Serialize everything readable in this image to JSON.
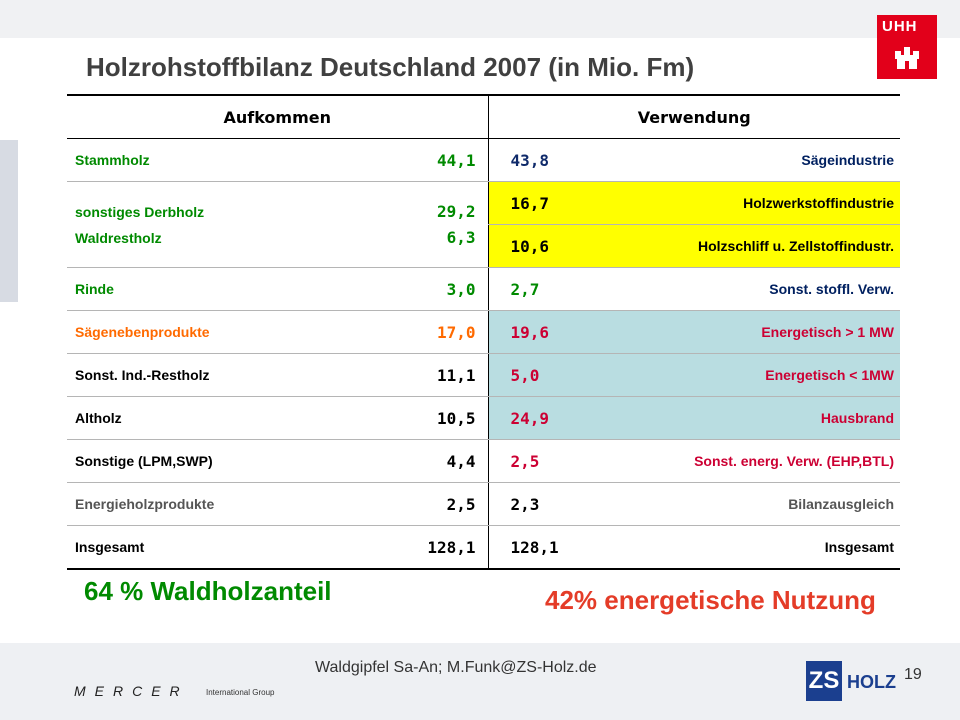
{
  "title": "Holzrohstoffbilanz Deutschland 2007 (in Mio. Fm)",
  "logo_text": "UHH",
  "headers": {
    "aufkommen": "Aufkommen",
    "verwendung": "Verwendung"
  },
  "rows": [
    {
      "label": "Stammholz",
      "a": "44,1",
      "v": "43,8",
      "use": "Sägeindustrie"
    },
    {
      "label": "sonstiges Derbholz",
      "label2": "Waldrestholz",
      "a": "29,2",
      "a2": "6,3",
      "v": "16,7",
      "use": "Holzwerkstoffindustrie",
      "v2": "10,6",
      "use2": "Holzschliff u. Zellstoffindustr."
    },
    {
      "label": "Rinde",
      "a": "3,0",
      "v": "2,7",
      "use": "Sonst. stoffl. Verw."
    },
    {
      "label": "Sägenebenprodukte",
      "a": "17,0",
      "v": "19,6",
      "use": "Energetisch > 1 MW"
    },
    {
      "label": "Sonst. Ind.-Restholz",
      "a": "11,1",
      "v": "5,0",
      "use": "Energetisch < 1MW"
    },
    {
      "label": "Altholz",
      "a": "10,5",
      "v": "24,9",
      "use": "Hausbrand"
    },
    {
      "label": "Sonstige (LPM,SWP)",
      "a": "4,4",
      "v": "2,5",
      "use": "Sonst. energ. Verw. (EHP,BTL)"
    },
    {
      "label": "Energieholzprodukte",
      "a": "2,5",
      "v": "2,3",
      "use": "Bilanzausgleich"
    },
    {
      "label": "Insgesamt",
      "a": "128,1",
      "v": "128,1",
      "use": "Insgesamt"
    }
  ],
  "highlight_left": "64 % Waldholzanteil",
  "highlight_right": "42% energetische Nutzung",
  "footer": {
    "text": "Waldgipfel Sa-An; M.Funk@ZS-Holz.de",
    "page": "19",
    "mercer": "MERCER",
    "mercer_sub": "International Group",
    "zs": "ZS",
    "holz": "HOLZ"
  },
  "colors": {
    "yellow": "#ffff00",
    "teal": "#b9dde1",
    "green": "#008a00",
    "red": "#e43c28",
    "orange": "#ff6a00"
  }
}
